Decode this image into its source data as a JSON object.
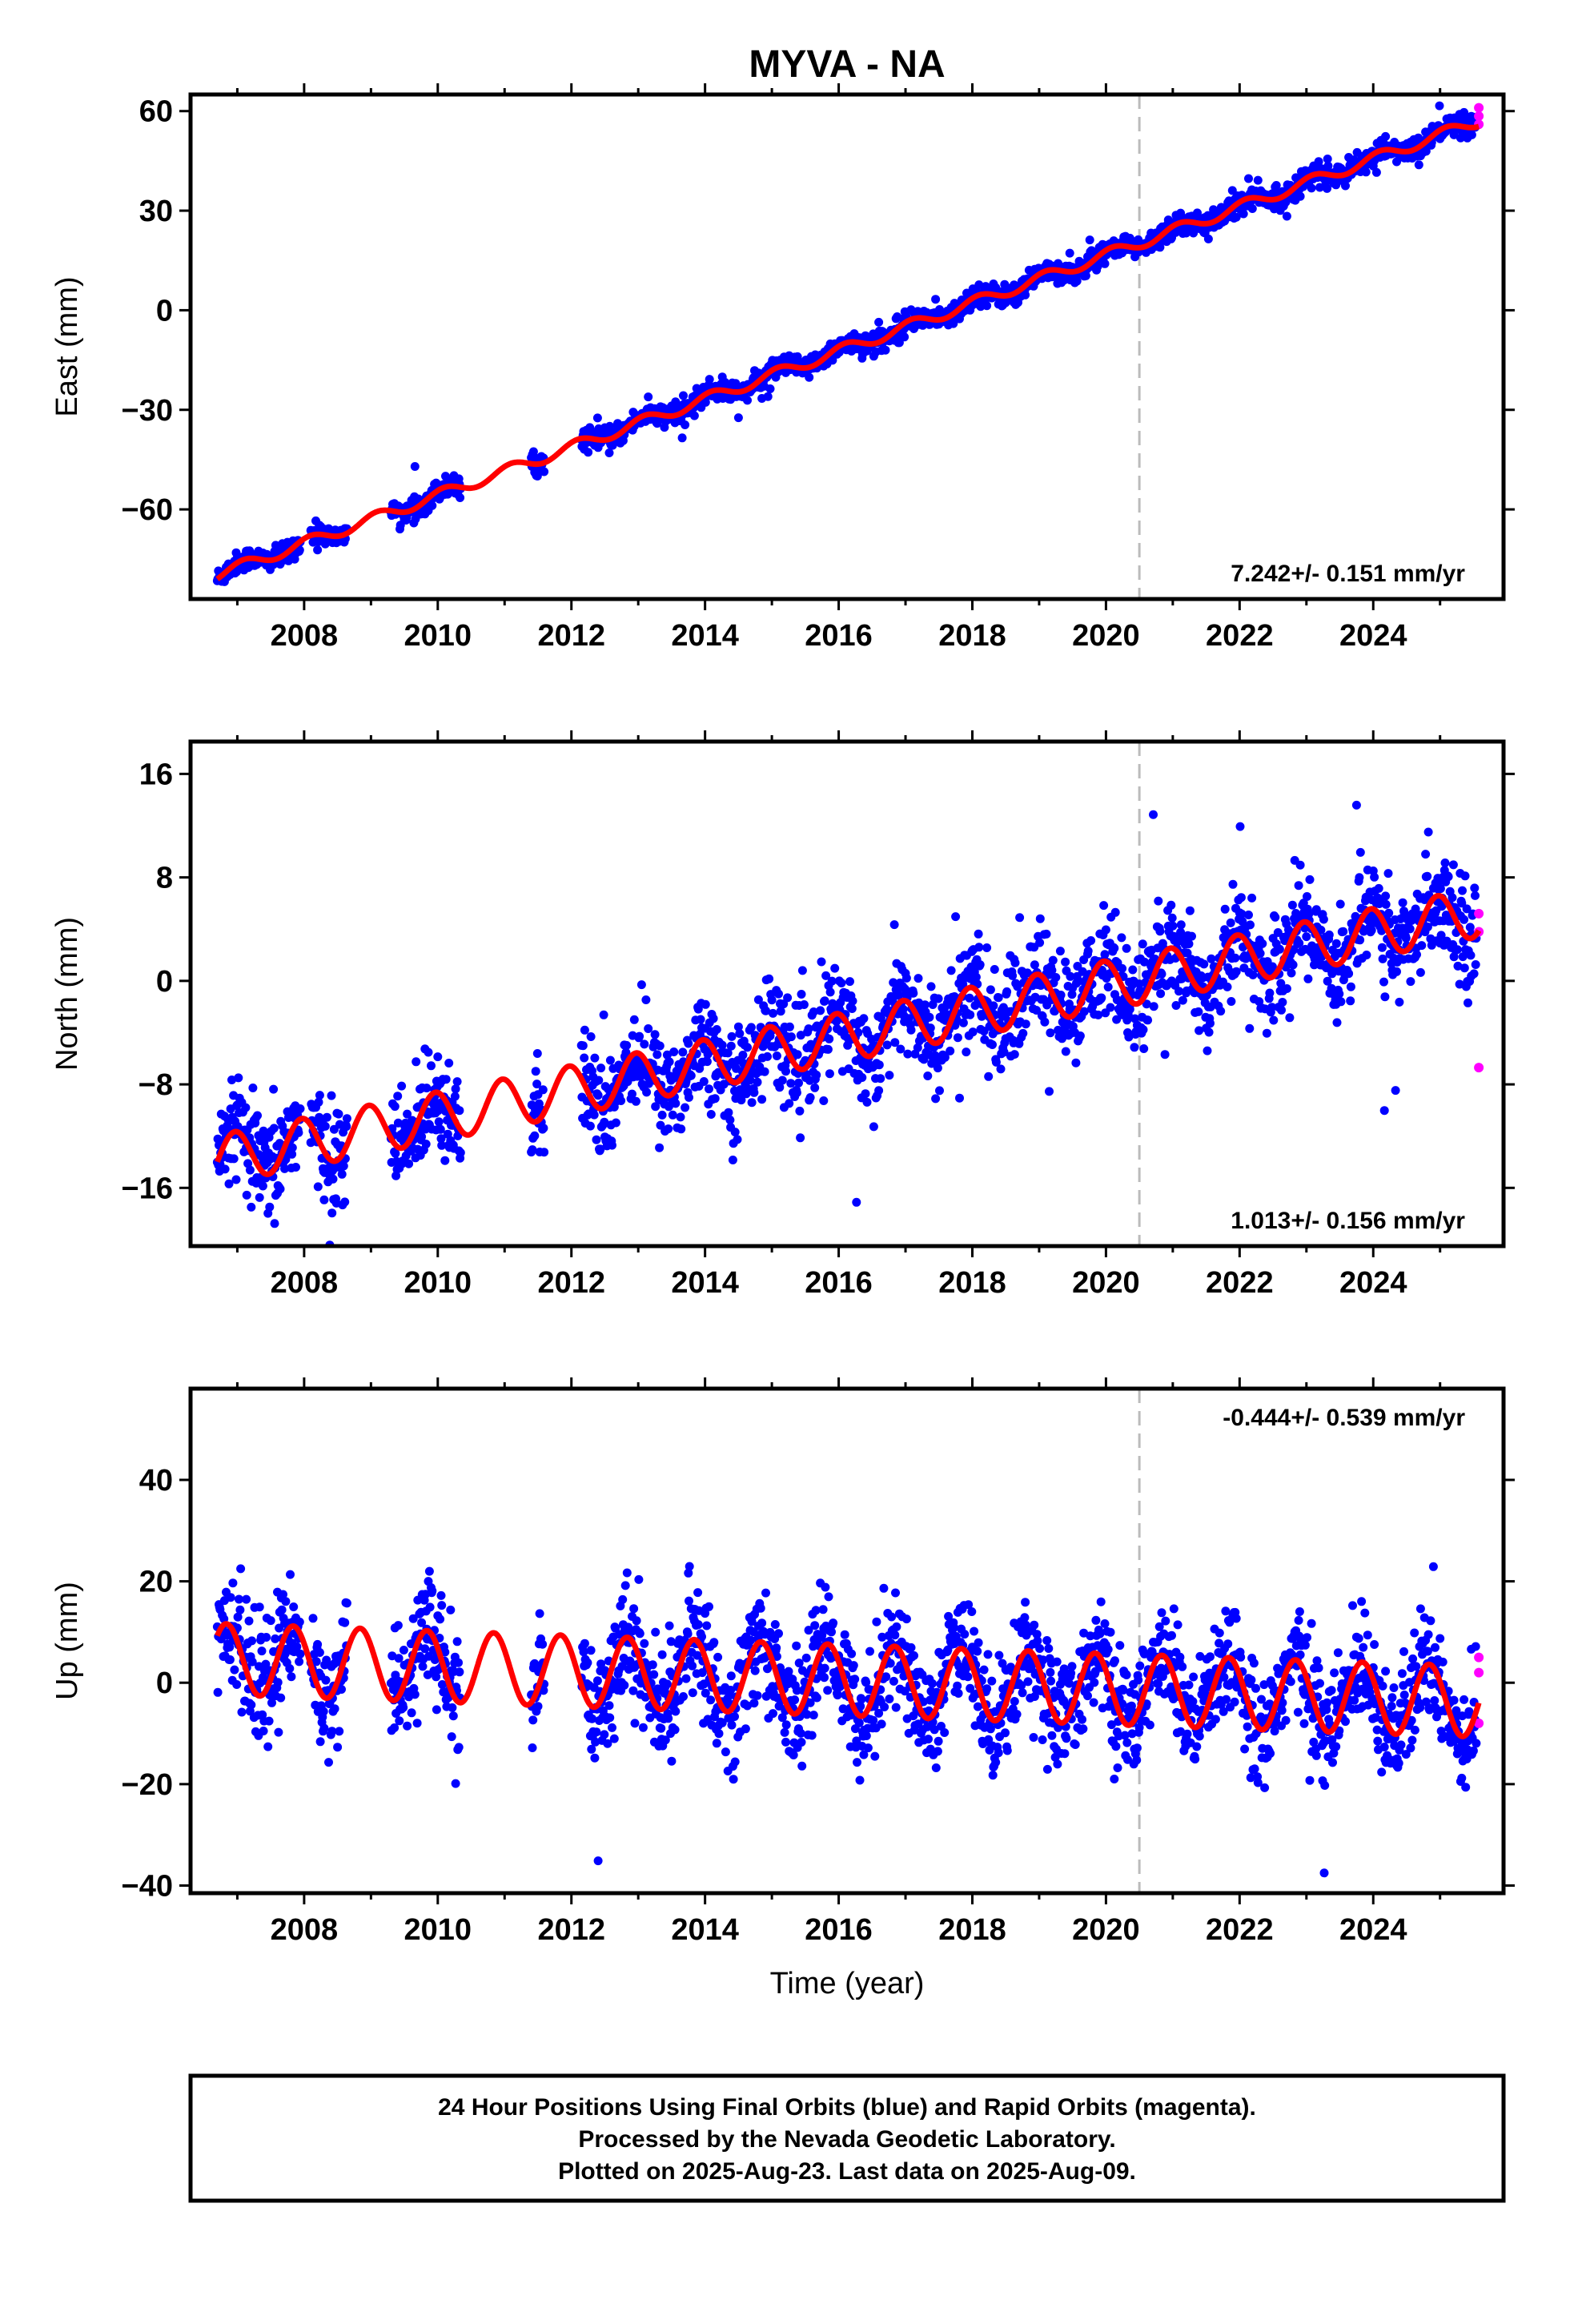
{
  "title": "MYVA - NA",
  "xlabel": "Time (year)",
  "caption": {
    "line1": "24 Hour Positions Using Final Orbits (blue) and Rapid Orbits (magenta).",
    "line2": "Processed by the Nevada Geodetic Laboratory.",
    "line3": "Plotted on 2025-Aug-23. Last data on 2025-Aug-09."
  },
  "colors": {
    "final": "#0000ff",
    "rapid": "#ff00ff",
    "model": "#ff0000",
    "event": "#bbbbbb",
    "frame": "#000000"
  },
  "chart_data": [
    {
      "type": "scatter",
      "component": "East",
      "ylabel": "East (mm)",
      "xlim": [
        2006.3,
        2025.95
      ],
      "ylim": [
        -87,
        65
      ],
      "yticks": [
        -60,
        -30,
        0,
        30,
        60
      ],
      "xticks": [
        2008,
        2010,
        2012,
        2014,
        2016,
        2018,
        2020,
        2022,
        2024
      ],
      "rate_text": "7.242+/- 0.151 mm/yr",
      "rate_position": "bottom-right",
      "event_line_year": 2020.5,
      "trend": {
        "rate_mm_per_yr": 7.242,
        "ref_year": 2016.1,
        "ref_value": -11.6,
        "annual_amp": 1.7,
        "annual_phase": 1.0
      },
      "final_orbit_extent": {
        "start": 2006.7,
        "end": 2025.55,
        "scatter_mm": 1.6
      },
      "rapid_orbit_points": [
        {
          "x": 2025.58,
          "y": 61
        },
        {
          "x": 2025.58,
          "y": 58.5
        },
        {
          "x": 2025.58,
          "y": 56
        }
      ],
      "gaps": [
        [
          2007.95,
          2008.1
        ],
        [
          2008.65,
          2009.3
        ],
        [
          2010.35,
          2011.4
        ],
        [
          2011.6,
          2012.15
        ]
      ]
    },
    {
      "type": "scatter",
      "component": "North",
      "ylabel": "North (mm)",
      "xlim": [
        2006.3,
        2025.95
      ],
      "ylim": [
        -20.5,
        18.5
      ],
      "yticks": [
        -16,
        -8,
        0,
        8,
        16
      ],
      "xticks": [
        2008,
        2010,
        2012,
        2014,
        2016,
        2018,
        2020,
        2022,
        2024
      ],
      "rate_text": "1.013+/- 0.156 mm/yr",
      "rate_position": "bottom-right",
      "event_line_year": 2020.5,
      "trend": {
        "rate_mm_per_yr": 1.013,
        "ref_year": 2016.1,
        "ref_value": -4.3,
        "annual_amp": 1.9,
        "annual_phase": 1.8
      },
      "final_orbit_extent": {
        "start": 2006.7,
        "end": 2025.55,
        "scatter_mm": 2.0
      },
      "rapid_orbit_points": [
        {
          "x": 2025.58,
          "y": 5.2
        },
        {
          "x": 2025.58,
          "y": 3.8
        },
        {
          "x": 2025.58,
          "y": -6.7
        }
      ],
      "gaps": [
        [
          2007.95,
          2008.1
        ],
        [
          2008.65,
          2009.3
        ],
        [
          2010.35,
          2011.4
        ],
        [
          2011.6,
          2012.15
        ]
      ]
    },
    {
      "type": "scatter",
      "component": "Up",
      "ylabel": "Up (mm)",
      "xlim": [
        2006.3,
        2025.95
      ],
      "ylim": [
        -41.5,
        58
      ],
      "yticks": [
        -40,
        -20,
        0,
        20,
        40
      ],
      "xticks": [
        2008,
        2010,
        2012,
        2014,
        2016,
        2018,
        2020,
        2022,
        2024
      ],
      "rate_text": "-0.444+/- 0.539 mm/yr",
      "rate_position": "top-right",
      "event_line_year": 2020.5,
      "trend": {
        "rate_mm_per_yr": -0.444,
        "ref_year": 2016.1,
        "ref_value": 0.5,
        "annual_amp": 7.0,
        "annual_phase": 2.6
      },
      "final_orbit_extent": {
        "start": 2006.7,
        "end": 2025.55,
        "scatter_mm": 5.5
      },
      "rapid_orbit_points": [
        {
          "x": 2025.58,
          "y": 5
        },
        {
          "x": 2025.58,
          "y": 2
        },
        {
          "x": 2025.58,
          "y": -8
        }
      ],
      "gaps": [
        [
          2007.95,
          2008.1
        ],
        [
          2008.65,
          2009.3
        ],
        [
          2010.35,
          2011.4
        ],
        [
          2011.6,
          2012.15
        ]
      ]
    }
  ]
}
